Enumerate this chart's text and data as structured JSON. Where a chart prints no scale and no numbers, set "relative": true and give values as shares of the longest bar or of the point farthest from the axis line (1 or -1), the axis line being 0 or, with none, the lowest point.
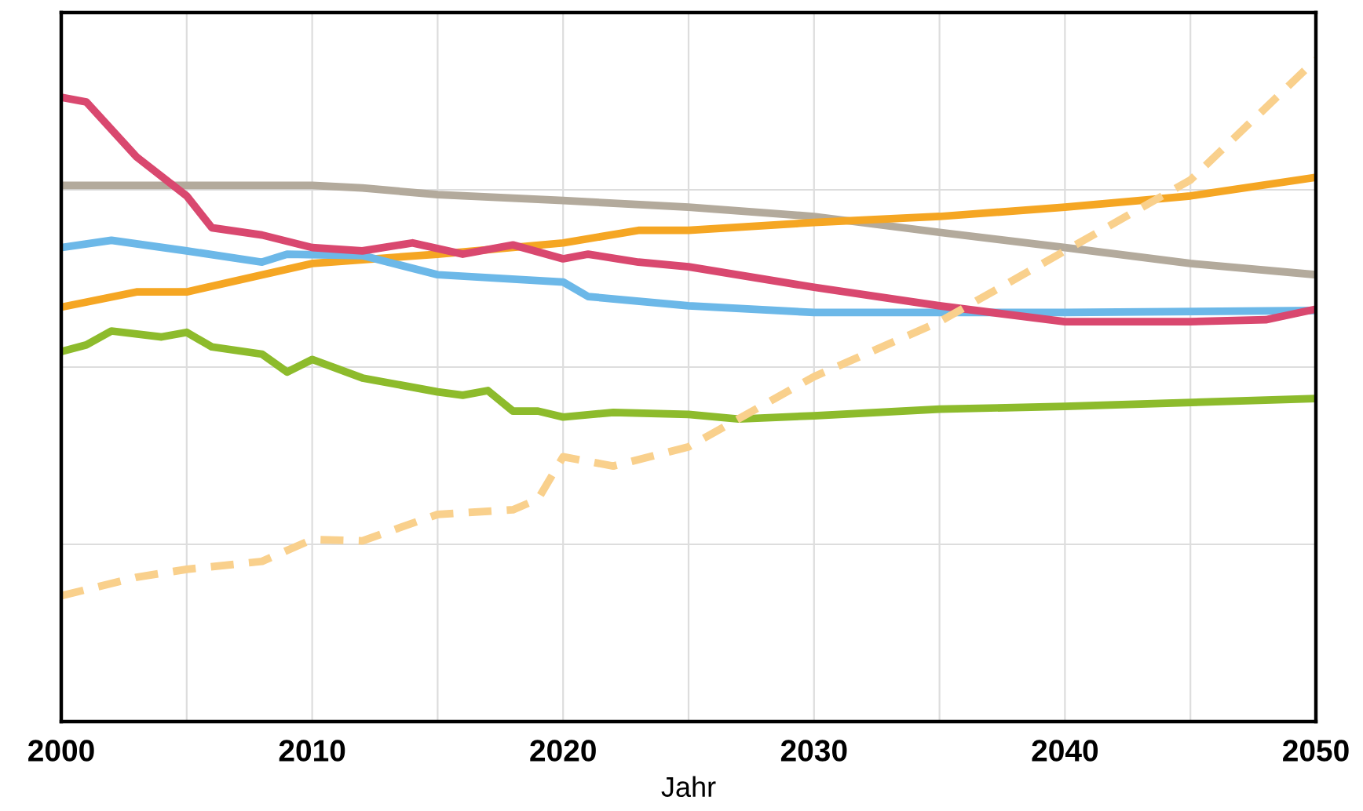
{
  "chart_data": {
    "type": "line",
    "relative": true,
    "xlabel": "Jahr",
    "xlim": [
      2000,
      2050
    ],
    "xticks": [
      2000,
      {
        "value": 2005,
        "label": null
      },
      2010,
      {
        "value": 2015,
        "label": null
      },
      2020,
      {
        "value": 2025,
        "label": null
      },
      2030,
      {
        "value": 2035,
        "label": null
      },
      2040,
      {
        "value": 2045,
        "label": null
      },
      2050
    ],
    "grid": true,
    "legend": false,
    "marker": "none",
    "line_style": "solid",
    "series": [
      {
        "color": "#b3aa9c",
        "x": [
          2000,
          2010,
          2012,
          2015,
          2020,
          2025,
          2030,
          2035,
          2040,
          2045,
          2050
        ],
        "values": [
          0.81,
          0.81,
          0.806,
          0.796,
          0.787,
          0.777,
          0.763,
          0.739,
          0.716,
          0.692,
          0.675
        ]
      },
      {
        "color": "#f5a623",
        "x": [
          2000,
          2003,
          2005,
          2010,
          2015,
          2020,
          2023,
          2025,
          2030,
          2035,
          2040,
          2045,
          2050
        ],
        "values": [
          0.626,
          0.649,
          0.649,
          0.692,
          0.706,
          0.723,
          0.742,
          0.742,
          0.754,
          0.763,
          0.777,
          0.794,
          0.822
        ]
      },
      {
        "color": "#6cb8e8",
        "x": [
          2000,
          2002,
          2005,
          2008,
          2009,
          2012,
          2015,
          2020,
          2021,
          2025,
          2030,
          2040,
          2050
        ],
        "values": [
          0.716,
          0.727,
          0.711,
          0.694,
          0.706,
          0.704,
          0.675,
          0.664,
          0.642,
          0.628,
          0.618,
          0.618,
          0.621
        ]
      },
      {
        "color": "#d9486f",
        "x": [
          2000,
          2001,
          2003,
          2005,
          2006,
          2008,
          2010,
          2012,
          2014,
          2016,
          2018,
          2020,
          2021,
          2023,
          2025,
          2030,
          2035,
          2040,
          2045,
          2048,
          2050
        ],
        "values": [
          0.943,
          0.936,
          0.853,
          0.794,
          0.746,
          0.735,
          0.716,
          0.711,
          0.723,
          0.706,
          0.72,
          0.699,
          0.706,
          0.694,
          0.687,
          0.656,
          0.628,
          0.604,
          0.604,
          0.607,
          0.623
        ]
      },
      {
        "color": "#8dbb2c",
        "x": [
          2000,
          2001,
          2002,
          2004,
          2005,
          2006,
          2008,
          2009,
          2010,
          2012,
          2015,
          2016,
          2017,
          2018,
          2019,
          2020,
          2022,
          2025,
          2027,
          2030,
          2035,
          2040,
          2050
        ],
        "values": [
          0.559,
          0.569,
          0.59,
          0.581,
          0.588,
          0.566,
          0.555,
          0.528,
          0.547,
          0.519,
          0.498,
          0.493,
          0.5,
          0.469,
          0.469,
          0.46,
          0.467,
          0.464,
          0.457,
          0.462,
          0.472,
          0.476,
          0.488
        ]
      },
      {
        "color": "#f9d08c",
        "line_style": "dashed",
        "x": [
          2000,
          2003,
          2005,
          2008,
          2010,
          2012,
          2015,
          2018,
          2019,
          2020,
          2022,
          2025,
          2030,
          2035,
          2040,
          2045,
          2050
        ],
        "values": [
          0.19,
          0.218,
          0.23,
          0.242,
          0.275,
          0.273,
          0.313,
          0.32,
          0.336,
          0.4,
          0.386,
          0.415,
          0.521,
          0.604,
          0.711,
          0.818,
          1.0
        ]
      }
    ]
  }
}
